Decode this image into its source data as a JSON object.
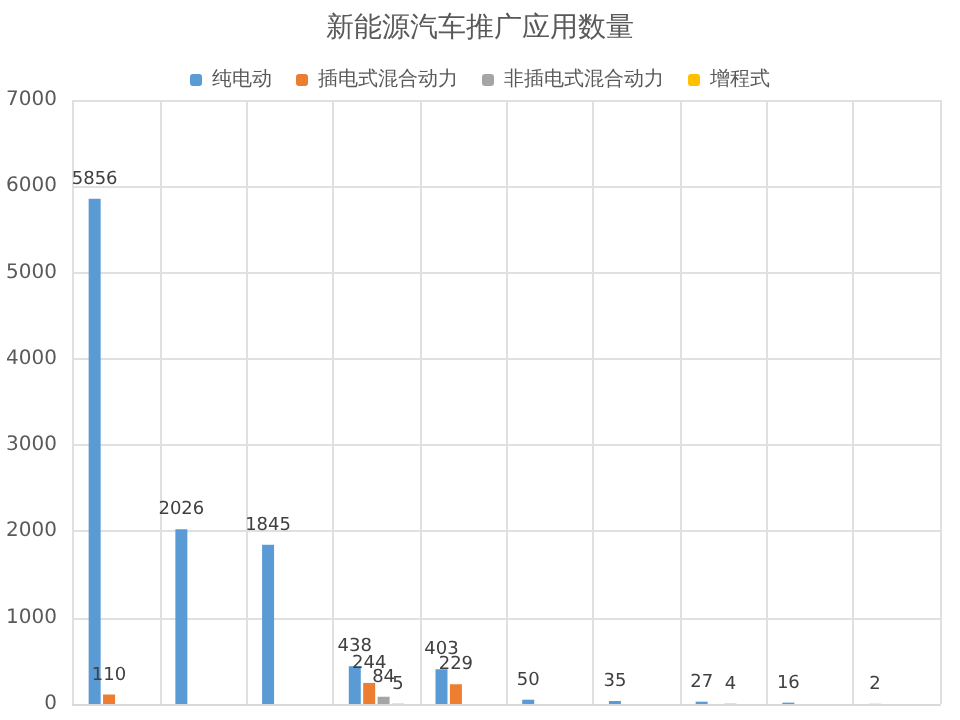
{
  "chart_data": {
    "type": "bar",
    "title": "新能源汽车推广应用数量",
    "categories": [
      null,
      null,
      null,
      null,
      null,
      null,
      null,
      null,
      null,
      null
    ],
    "series": [
      {
        "name": "纯电动",
        "color": "#5b9bd5",
        "values": [
          5856,
          2026,
          1845,
          438,
          403,
          50,
          35,
          27,
          16,
          2
        ]
      },
      {
        "name": "插电式混合动力",
        "color": "#ed7d31",
        "values": [
          110,
          null,
          null,
          244,
          229,
          null,
          null,
          null,
          null,
          null
        ]
      },
      {
        "name": "非插电式混合动力",
        "color": "#a5a5a5",
        "values": [
          null,
          null,
          null,
          84,
          null,
          null,
          null,
          4,
          null,
          null
        ]
      },
      {
        "name": "增程式",
        "color": "#ffc000",
        "values": [
          null,
          null,
          null,
          5,
          null,
          null,
          null,
          null,
          null,
          null
        ]
      }
    ],
    "ylim": [
      0,
      7000
    ],
    "yticks": [
      0,
      1000,
      2000,
      3000,
      4000,
      5000,
      6000,
      7000
    ],
    "grid": true,
    "legend": "top",
    "data_labels": true,
    "tick_labels": "y"
  }
}
